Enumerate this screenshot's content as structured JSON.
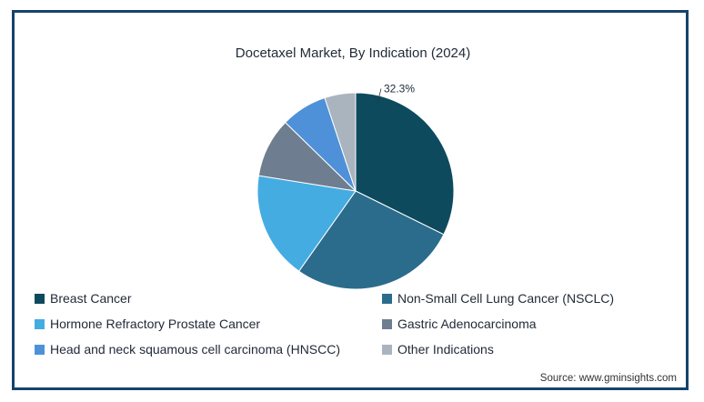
{
  "chart_data": {
    "type": "pie",
    "title": "Docetaxel Market, By Indication (2024)",
    "slices": [
      {
        "name": "Breast Cancer",
        "value": 32.3,
        "color": "#0d4a5e",
        "label": "32.3%"
      },
      {
        "name": "Non-Small Cell Lung Cancer (NSCLC)",
        "value": 27.5,
        "color": "#2b6c8c",
        "label": ""
      },
      {
        "name": "Hormone Refractory Prostate Cancer",
        "value": 17.7,
        "color": "#45ace1",
        "label": ""
      },
      {
        "name": "Gastric Adenocarcinoma",
        "value": 9.8,
        "color": "#6e7e90",
        "label": ""
      },
      {
        "name": "Head and neck squamous cell carcinoma (HNSCC)",
        "value": 7.6,
        "color": "#4f91d8",
        "label": ""
      },
      {
        "name": "Other Indications",
        "value": 5.1,
        "color": "#a9b4bf",
        "label": ""
      }
    ],
    "legend_placement": "bottom"
  },
  "source": "Source: www.gminsights.com"
}
